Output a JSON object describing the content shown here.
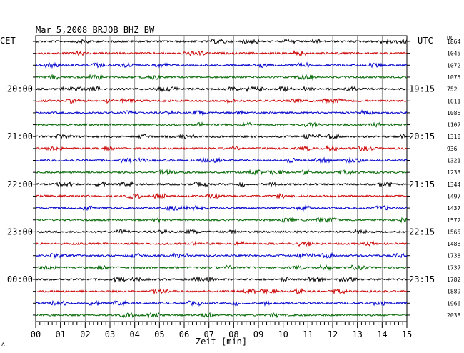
{
  "chart_data": {
    "type": "line",
    "title": "Mar 5,2008   BRJOB BHZ BW",
    "xlabel": "Zeit [min]",
    "left_axis_label": "CET",
    "right_axis_label": "UTC",
    "dc_label": "DC",
    "x_ticks": [
      "00",
      "01",
      "02",
      "03",
      "04",
      "05",
      "06",
      "07",
      "08",
      "09",
      "10",
      "11",
      "12",
      "13",
      "14",
      "15"
    ],
    "xlim": [
      0,
      15
    ],
    "grid": true,
    "cet_labels": [
      {
        "trace": 4,
        "text": "20:00"
      },
      {
        "trace": 8,
        "text": "21:00"
      },
      {
        "trace": 12,
        "text": "22:00"
      },
      {
        "trace": 16,
        "text": "23:00"
      },
      {
        "trace": 20,
        "text": "00:00"
      }
    ],
    "utc_labels": [
      {
        "trace": 4,
        "text": "19:15"
      },
      {
        "trace": 8,
        "text": "20:15"
      },
      {
        "trace": 12,
        "text": "21:15"
      },
      {
        "trace": 16,
        "text": "22:15"
      },
      {
        "trace": 20,
        "text": "23:15"
      }
    ],
    "trace_colors": [
      "#000000",
      "#cc0000",
      "#0000cc",
      "#006600"
    ],
    "dc_offsets": [
      1864,
      1045,
      1072,
      1075,
      752,
      1011,
      1086,
      1107,
      1310,
      936,
      1321,
      1233,
      1344,
      1497,
      1437,
      1572,
      1565,
      1488,
      1738,
      1737,
      1782,
      1889,
      1966,
      2038
    ]
  },
  "corner_mark": "ᴧ"
}
